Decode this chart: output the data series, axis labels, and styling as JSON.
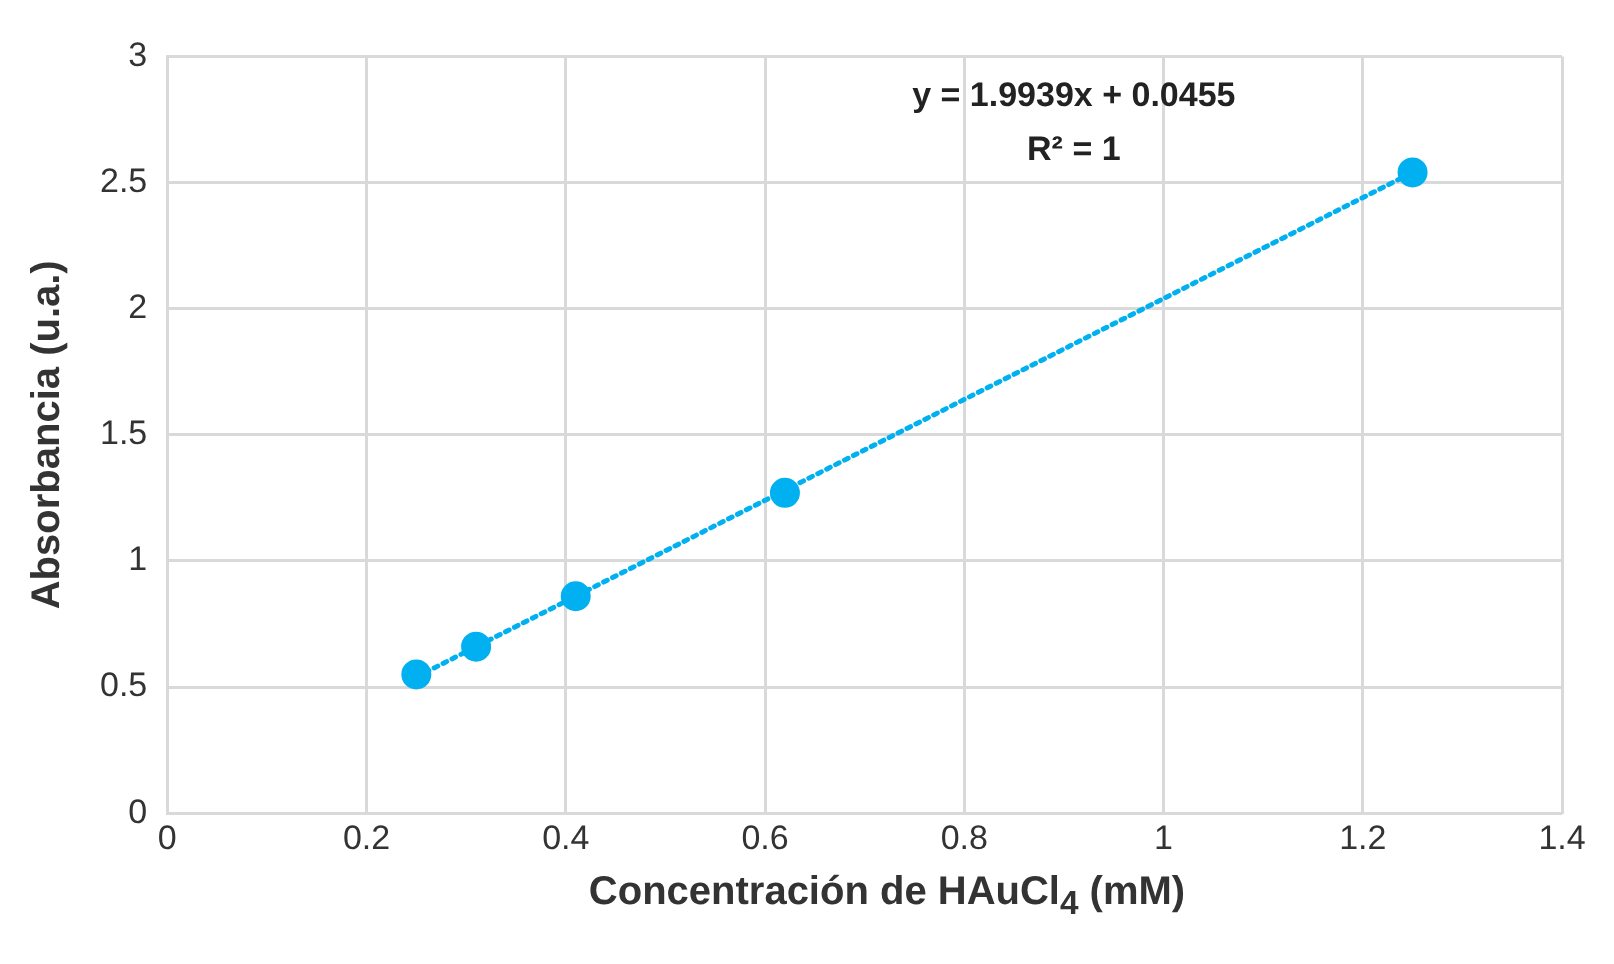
{
  "chart_data": {
    "type": "scatter",
    "xlabel": "Concentración de HAuCl$_{4}$ (mM)",
    "ylabel": "Absorbancia (u.a.)",
    "xlim": [
      0,
      1.4
    ],
    "xticks": [
      0,
      0.2,
      0.4,
      0.6,
      0.8,
      1,
      1.2,
      1.4
    ],
    "ylim": [
      0,
      3
    ],
    "yticks": [
      0,
      0.5,
      1,
      1.5,
      2,
      2.5,
      3
    ],
    "grid": true,
    "legend": false,
    "series": [
      {
        "type": "scatter",
        "color": "#00b0f0",
        "marker": "circle",
        "x": [
          0.25,
          0.31,
          0.41,
          0.62,
          1.25
        ],
        "values": [
          0.55,
          0.66,
          0.86,
          1.27,
          2.54
        ]
      },
      {
        "type": "line",
        "color": "#00b0f0",
        "marker": "none",
        "line_style": "dotted",
        "x": [
          0.25,
          1.25
        ],
        "values": [
          0.54,
          2.54
        ]
      }
    ],
    "annotations": [
      "y = 1.9939x + 0.0455",
      "R² = 1"
    ]
  }
}
